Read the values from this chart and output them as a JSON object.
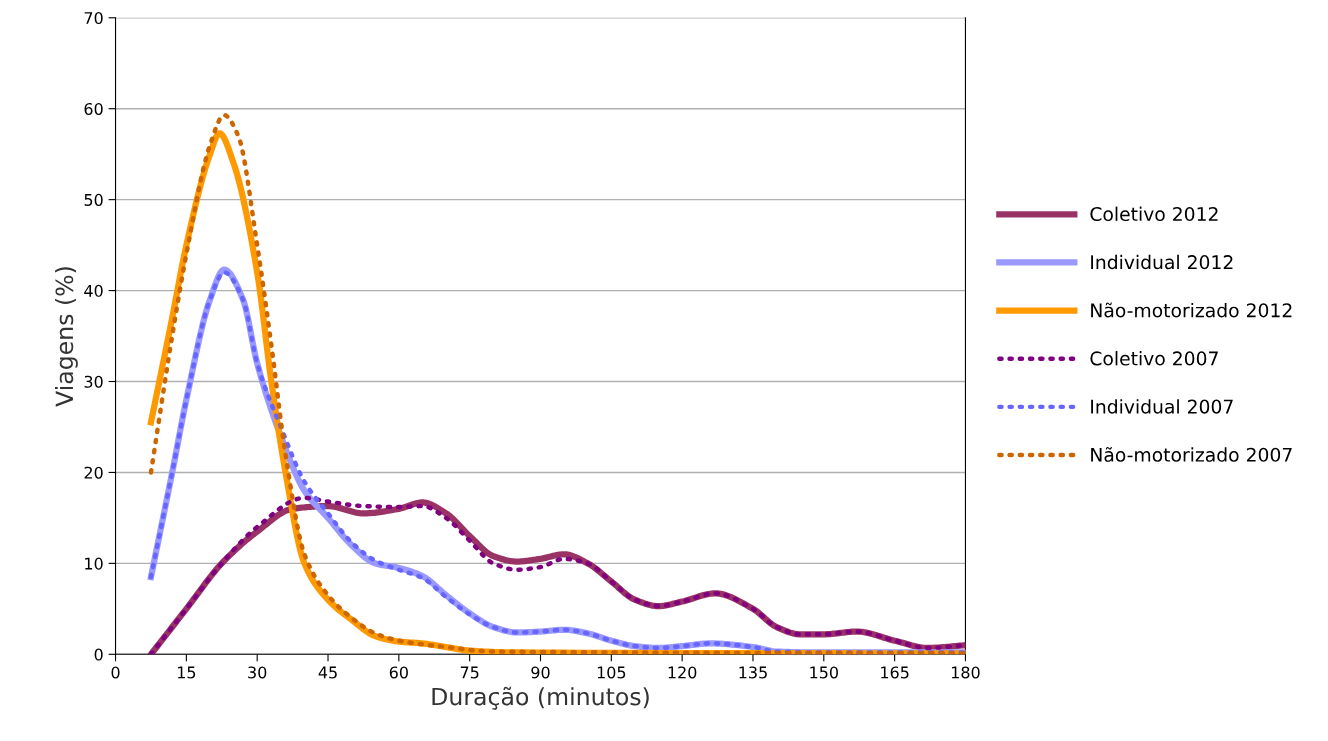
{
  "chart_data": {
    "type": "line",
    "xlabel": "Duração (minutos)",
    "ylabel": "Viagens (%)",
    "xlim": [
      0,
      180
    ],
    "ylim": [
      0,
      70
    ],
    "xticks": [
      0,
      15,
      30,
      45,
      60,
      75,
      90,
      105,
      120,
      135,
      150,
      165,
      180
    ],
    "yticks": [
      0,
      10,
      20,
      30,
      40,
      50,
      60,
      70
    ],
    "grid": "y",
    "legend": "right",
    "marker": "none",
    "series": [
      {
        "name": "Coletivo 2012",
        "color": "#993366",
        "line_style": "solid",
        "x": [
          7.5,
          15,
          22.5,
          30,
          37.5,
          45,
          52.5,
          60,
          65,
          70,
          75,
          80,
          85,
          90,
          95,
          100,
          105,
          110,
          115,
          120,
          127,
          135,
          140,
          145,
          150,
          157,
          165,
          172,
          180
        ],
        "values": [
          0,
          5,
          10,
          13.5,
          16,
          16.3,
          15.5,
          16,
          16.7,
          15.5,
          13,
          10.8,
          10.2,
          10.5,
          11,
          10,
          8,
          6,
          5.3,
          5.8,
          6.7,
          5,
          3,
          2.2,
          2.2,
          2.5,
          1.5,
          0.7,
          1.0
        ]
      },
      {
        "name": "Individual 2012",
        "color": "#9999ff",
        "line_style": "solid",
        "x": [
          7.5,
          12,
          15,
          20,
          23,
          27,
          30,
          35,
          40,
          45,
          50,
          55,
          60,
          65,
          70,
          75,
          80,
          85,
          90,
          95,
          100,
          105,
          110,
          115,
          120,
          126,
          135,
          140,
          150,
          165,
          180
        ],
        "values": [
          8.5,
          20,
          28,
          39,
          42.3,
          39,
          32,
          24,
          18,
          15,
          12,
          10,
          9.5,
          8.6,
          6.5,
          4.5,
          3,
          2.4,
          2.5,
          2.7,
          2.3,
          1.5,
          0.9,
          0.7,
          0.9,
          1.2,
          0.8,
          0.3,
          0.2,
          0.2,
          0.2
        ]
      },
      {
        "name": "Não-motorizado 2012",
        "color": "#ff9900",
        "line_style": "solid",
        "x": [
          7.5,
          12,
          15,
          20,
          22,
          25,
          30,
          33,
          36,
          40,
          45,
          50,
          55,
          60,
          65,
          70,
          75,
          85,
          180
        ],
        "values": [
          25.5,
          37,
          45,
          55,
          57.3,
          54,
          42,
          30,
          20,
          10,
          6,
          3.8,
          2,
          1.4,
          1.2,
          0.8,
          0.4,
          0.2,
          0.1
        ]
      },
      {
        "name": "Coletivo 2007",
        "color": "#800080",
        "line_style": "dotted",
        "x": [
          7.5,
          15,
          22.5,
          30,
          40,
          45,
          52.5,
          60,
          65,
          70,
          75,
          80,
          85,
          90,
          95,
          100,
          105,
          110,
          115,
          120,
          127,
          135,
          140,
          145,
          150,
          157,
          165,
          172,
          180
        ],
        "values": [
          0,
          5,
          10,
          14,
          17.2,
          16.8,
          16.3,
          16.2,
          16.3,
          15,
          12.5,
          10,
          9.3,
          9.6,
          10.5,
          10,
          8,
          6,
          5.3,
          5.8,
          6.7,
          5,
          3,
          2.2,
          2.2,
          2.5,
          1.5,
          0.7,
          1.0
        ]
      },
      {
        "name": "Individual 2007",
        "color": "#6666ff",
        "line_style": "dotted",
        "x": [
          7.5,
          12,
          15,
          20,
          23,
          27,
          30,
          35,
          40,
          45,
          50,
          55,
          60,
          65,
          70,
          75,
          80,
          85,
          90,
          95,
          100,
          105,
          110,
          115,
          120,
          126,
          135,
          140,
          150,
          165,
          180
        ],
        "values": [
          8.5,
          20,
          28,
          39,
          42,
          39,
          32,
          25,
          19,
          15.5,
          12.3,
          10.3,
          9.3,
          8.4,
          6.3,
          4.4,
          3,
          2.4,
          2.5,
          2.7,
          2.3,
          1.5,
          0.9,
          0.7,
          0.9,
          1.2,
          0.8,
          0.3,
          0.2,
          0.2,
          0.2
        ]
      },
      {
        "name": "Não-motorizado 2007",
        "color": "#cc6600",
        "line_style": "dotted",
        "x": [
          7.5,
          12,
          15,
          20,
          23,
          26,
          30,
          33,
          36,
          40,
          45,
          50,
          55,
          60,
          70,
          80,
          180
        ],
        "values": [
          20,
          35,
          44,
          56,
          59.3,
          57,
          45,
          34,
          22,
          11,
          6.5,
          4,
          2.3,
          1.5,
          0.8,
          0.3,
          0.1
        ]
      }
    ]
  }
}
